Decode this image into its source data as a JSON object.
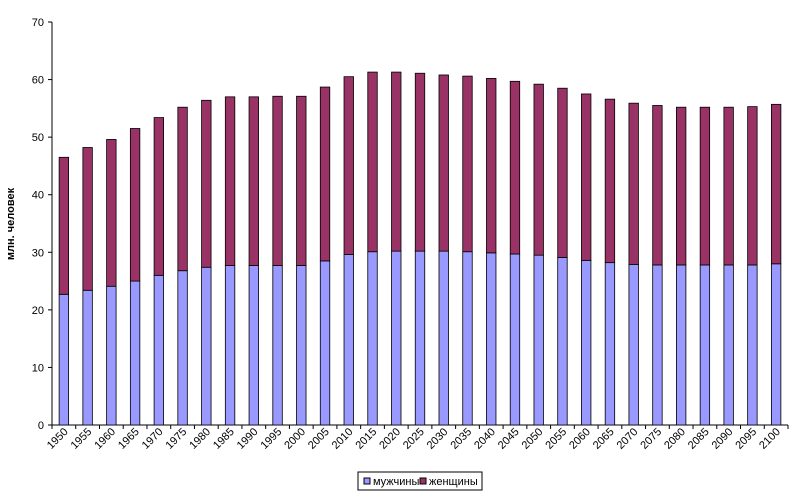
{
  "chart_data": {
    "type": "bar",
    "stacked": true,
    "ylabel": "млн. человек",
    "xlabel": "",
    "ylim": [
      0,
      70
    ],
    "yticks": [
      0,
      10,
      20,
      30,
      40,
      50,
      60,
      70
    ],
    "grid": false,
    "legend_position": "bottom-center",
    "categories": [
      "1950",
      "1955",
      "1960",
      "1965",
      "1970",
      "1975",
      "1980",
      "1985",
      "1990",
      "1995",
      "2000",
      "2005",
      "2010",
      "2015",
      "2020",
      "2025",
      "2030",
      "2035",
      "2040",
      "2045",
      "2050",
      "2055",
      "2060",
      "2065",
      "2070",
      "2075",
      "2080",
      "2085",
      "2090",
      "2095",
      "2100"
    ],
    "series": [
      {
        "name": "мужчины",
        "color": "#9999ff",
        "values": [
          22.7,
          23.4,
          24.1,
          25.0,
          26.0,
          26.8,
          27.4,
          27.7,
          27.7,
          27.7,
          27.7,
          28.5,
          29.6,
          30.1,
          30.2,
          30.2,
          30.2,
          30.1,
          29.9,
          29.7,
          29.5,
          29.1,
          28.6,
          28.2,
          27.9,
          27.8,
          27.8,
          27.8,
          27.8,
          27.8,
          28.0
        ]
      },
      {
        "name": "женщины",
        "color": "#993366",
        "values": [
          23.8,
          24.8,
          25.5,
          26.5,
          27.4,
          28.4,
          29.0,
          29.3,
          29.3,
          29.4,
          29.4,
          30.2,
          30.9,
          31.2,
          31.1,
          30.9,
          30.6,
          30.5,
          30.3,
          30.0,
          29.7,
          29.4,
          28.9,
          28.4,
          28.0,
          27.7,
          27.4,
          27.4,
          27.4,
          27.5,
          27.7
        ]
      }
    ]
  }
}
